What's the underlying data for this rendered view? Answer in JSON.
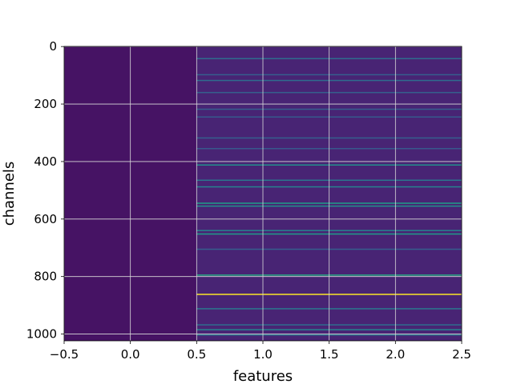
{
  "chart_data": {
    "type": "heatmap",
    "title": "",
    "xlabel": "features",
    "ylabel": "channels",
    "xlim": [
      -0.5,
      2.5
    ],
    "ylim": [
      1023.5,
      -0.5
    ],
    "x_ticks": [
      -0.5,
      0.0,
      0.5,
      1.0,
      1.5,
      2.0,
      2.5
    ],
    "x_tick_labels": [
      "−0.5",
      "0.0",
      "0.5",
      "1.0",
      "1.5",
      "2.0",
      "2.5"
    ],
    "y_ticks": [
      0,
      200,
      400,
      600,
      800,
      1000
    ],
    "y_tick_labels": [
      "0",
      "200",
      "400",
      "600",
      "800",
      "1000"
    ],
    "grid": true,
    "colormap": "viridis",
    "columns": [
      {
        "feature": 0,
        "value": 0.05
      },
      {
        "feature": 1,
        "value": 0.1
      },
      {
        "feature": 2,
        "value": 0.1
      }
    ],
    "highlight_rows": [
      {
        "channel": 42,
        "value": 0.35
      },
      {
        "channel": 98,
        "value": 0.3
      },
      {
        "channel": 118,
        "value": 0.35
      },
      {
        "channel": 160,
        "value": 0.3
      },
      {
        "channel": 218,
        "value": 0.3
      },
      {
        "channel": 245,
        "value": 0.28
      },
      {
        "channel": 318,
        "value": 0.3
      },
      {
        "channel": 355,
        "value": 0.28
      },
      {
        "channel": 412,
        "value": 0.5
      },
      {
        "channel": 465,
        "value": 0.4
      },
      {
        "channel": 488,
        "value": 0.45
      },
      {
        "channel": 545,
        "value": 0.55
      },
      {
        "channel": 555,
        "value": 0.5
      },
      {
        "channel": 640,
        "value": 0.45
      },
      {
        "channel": 652,
        "value": 0.55
      },
      {
        "channel": 705,
        "value": 0.3
      },
      {
        "channel": 795,
        "value": 0.6
      },
      {
        "channel": 862,
        "value": 1.0
      },
      {
        "channel": 912,
        "value": 0.4
      },
      {
        "channel": 968,
        "value": 0.35
      },
      {
        "channel": 985,
        "value": 0.45
      },
      {
        "channel": 1003,
        "value": 0.4
      }
    ]
  }
}
